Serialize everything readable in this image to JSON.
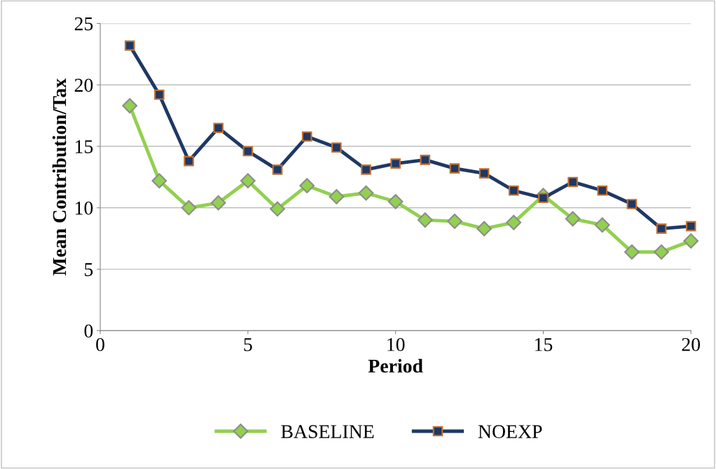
{
  "chart_data": {
    "type": "line",
    "xlabel": "Period",
    "ylabel": "Mean Contribution/Tax",
    "x": [
      1,
      2,
      3,
      4,
      5,
      6,
      7,
      8,
      9,
      10,
      11,
      12,
      13,
      14,
      15,
      16,
      17,
      18,
      19,
      20
    ],
    "series": [
      {
        "name": "BASELINE",
        "color": "#92d050",
        "marker": "diamond",
        "values": [
          18.3,
          12.2,
          10.0,
          10.4,
          12.2,
          9.9,
          11.8,
          10.9,
          11.2,
          10.5,
          9.0,
          8.9,
          8.3,
          8.8,
          11.0,
          9.1,
          8.6,
          6.4,
          6.4,
          7.3
        ]
      },
      {
        "name": "NOEXP",
        "color": "#1f3864",
        "marker": "square",
        "values": [
          23.2,
          19.2,
          13.8,
          16.5,
          14.6,
          13.1,
          15.8,
          14.9,
          13.1,
          13.6,
          13.9,
          13.2,
          12.8,
          11.4,
          10.8,
          12.1,
          11.4,
          10.3,
          8.3,
          8.5
        ]
      }
    ],
    "xlim": [
      0,
      20
    ],
    "xticks": [
      0,
      5,
      10,
      15,
      20
    ],
    "ylim": [
      0,
      25
    ],
    "yticks": [
      0,
      5,
      10,
      15,
      20,
      25
    ],
    "grid": "y",
    "legend": "bottom",
    "line_style": "solid"
  }
}
